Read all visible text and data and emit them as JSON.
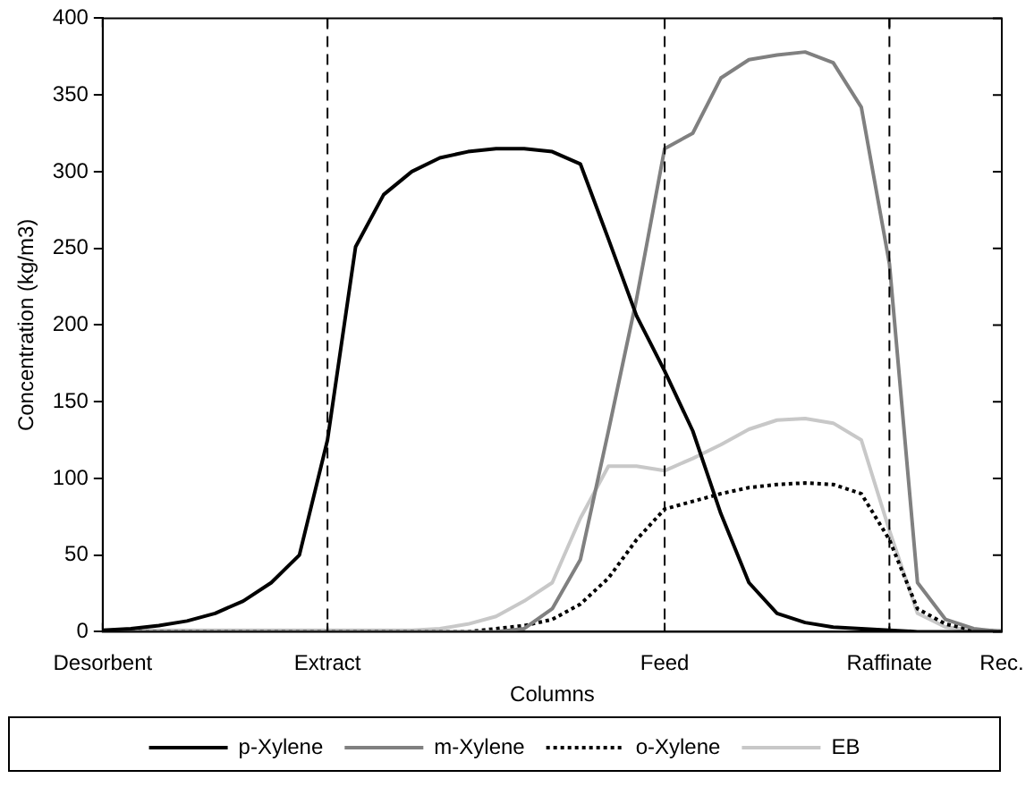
{
  "chart_data": {
    "type": "line",
    "xlabel": "Columns",
    "ylabel": "Concentration (kg/m3)",
    "categories": [
      "Desorbent",
      null,
      null,
      null,
      null,
      null,
      null,
      null,
      "Extract",
      null,
      null,
      null,
      null,
      null,
      null,
      null,
      null,
      null,
      null,
      null,
      "Feed",
      null,
      null,
      null,
      null,
      null,
      null,
      null,
      "Raffinate",
      null,
      null,
      null,
      "Rec."
    ],
    "series": [
      {
        "name": "p-Xylene",
        "color": "#000000",
        "line_style": "solid",
        "values": [
          1,
          2,
          4,
          7,
          12,
          20,
          32,
          50,
          125,
          251,
          285,
          300,
          309,
          313,
          315,
          315,
          313,
          305,
          256,
          206,
          170,
          131,
          77,
          32,
          12,
          6,
          3,
          2,
          1,
          0,
          0,
          0,
          0
        ]
      },
      {
        "name": "m-Xylene",
        "color": "#808080",
        "line_style": "solid",
        "values": [
          0,
          0,
          0,
          0,
          0,
          0,
          0,
          0,
          0,
          0,
          0,
          0,
          0,
          0,
          0,
          2,
          15,
          47,
          131,
          217,
          315,
          325,
          361,
          373,
          376,
          378,
          371,
          342,
          240,
          32,
          8,
          2,
          0
        ]
      },
      {
        "name": "o-Xylene",
        "color": "#000000",
        "line_style": "dotted",
        "values": [
          0,
          0,
          0,
          0,
          0,
          0,
          0,
          0,
          0,
          0,
          0,
          0,
          0,
          0,
          2,
          4,
          8,
          18,
          35,
          60,
          80,
          85,
          90,
          94,
          96,
          97,
          96,
          90,
          60,
          15,
          5,
          1,
          0
        ]
      },
      {
        "name": "EB",
        "color": "#c8c8c8",
        "line_style": "solid",
        "values": [
          1,
          1,
          1,
          1,
          1,
          1,
          1,
          1,
          1,
          1,
          1,
          1,
          2,
          5,
          10,
          20,
          32,
          74,
          108,
          108,
          105,
          113,
          122,
          132,
          138,
          139,
          136,
          125,
          66,
          12,
          3,
          1,
          1
        ]
      }
    ],
    "ylim": [
      0,
      400
    ],
    "yticks": [
      0,
      50,
      100,
      150,
      200,
      250,
      300,
      350,
      400
    ],
    "ref_lines": [
      {
        "axis": "x",
        "value": "Extract",
        "color": "#000000",
        "line_style": "dashed"
      },
      {
        "axis": "x",
        "value": "Feed",
        "color": "#000000",
        "line_style": "dashed"
      },
      {
        "axis": "x",
        "value": "Raffinate",
        "color": "#000000",
        "line_style": "dashed"
      }
    ],
    "grid": false,
    "legend": "bottom",
    "marker": "none"
  }
}
